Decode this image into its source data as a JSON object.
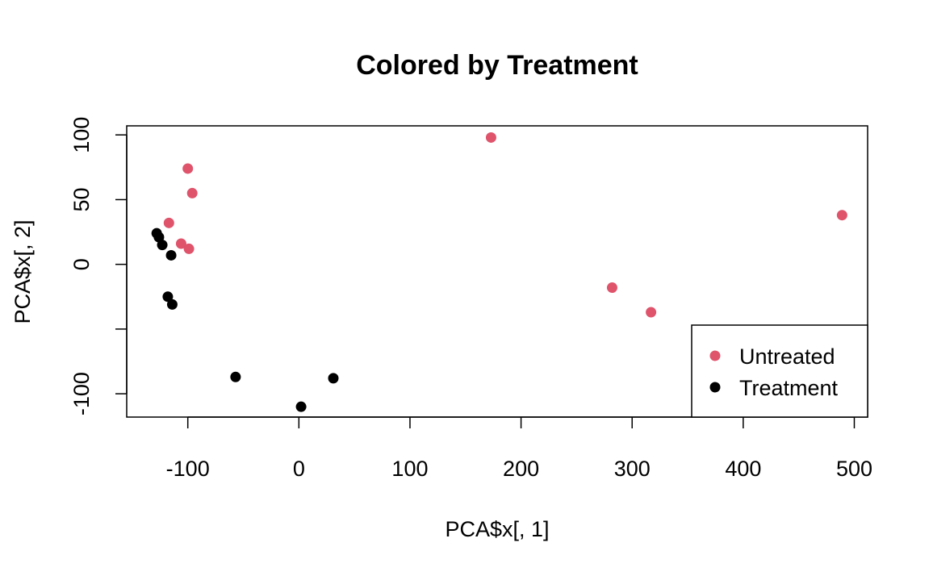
{
  "chart_data": {
    "type": "scatter",
    "title": "Colored by Treatment",
    "xlabel": "PCA$x[, 1]",
    "ylabel": "PCA$x[, 2]",
    "xlim": [
      -155,
      512
    ],
    "ylim": [
      -118,
      107
    ],
    "xticks": [
      -100,
      0,
      100,
      200,
      300,
      400,
      500
    ],
    "xtick_labels": [
      "-100",
      "0",
      "100",
      "200",
      "300",
      "400",
      "500"
    ],
    "yticks": [
      -100,
      -50,
      0,
      50,
      100
    ],
    "ytick_labels": [
      "-100",
      "",
      "0",
      "50",
      "100"
    ],
    "grid": false,
    "legend_position": "bottom-right",
    "series": [
      {
        "name": "Untreated",
        "color": "#DF536B",
        "points": [
          {
            "x": 173,
            "y": 98
          },
          {
            "x": -100,
            "y": 74
          },
          {
            "x": -96,
            "y": 55
          },
          {
            "x": -117,
            "y": 32
          },
          {
            "x": -106,
            "y": 16
          },
          {
            "x": -99,
            "y": 12
          },
          {
            "x": 282,
            "y": -18
          },
          {
            "x": 317,
            "y": -37
          },
          {
            "x": 489,
            "y": 38
          }
        ]
      },
      {
        "name": "Treatment",
        "color": "#000000",
        "points": [
          {
            "x": -128,
            "y": 24
          },
          {
            "x": -126,
            "y": 21
          },
          {
            "x": -123,
            "y": 15
          },
          {
            "x": -115,
            "y": 7
          },
          {
            "x": -118,
            "y": -25
          },
          {
            "x": -114,
            "y": -31
          },
          {
            "x": -57,
            "y": -87
          },
          {
            "x": 31,
            "y": -88
          },
          {
            "x": 2,
            "y": -110
          }
        ]
      }
    ]
  }
}
